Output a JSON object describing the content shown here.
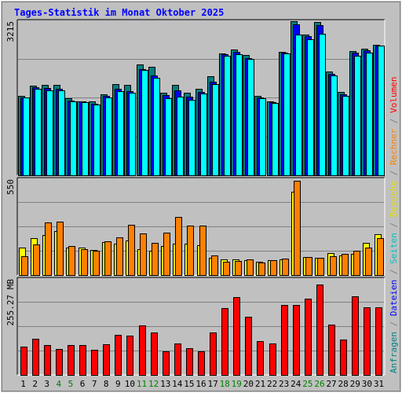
{
  "chart_data": {
    "type": "bar",
    "title": "Tages-Statistik im Monat Oktober 2025",
    "title_color": "#0000ff",
    "background": "#c0c0c0",
    "plot_background": "#c0c0c0",
    "grid": true,
    "categories": [
      "1",
      "2",
      "3",
      "4",
      "5",
      "6",
      "7",
      "8",
      "9",
      "10",
      "11",
      "12",
      "13",
      "14",
      "15",
      "16",
      "17",
      "18",
      "19",
      "20",
      "21",
      "22",
      "23",
      "24",
      "25",
      "26",
      "27",
      "28",
      "29",
      "30",
      "31"
    ],
    "weekend_days": [
      "4",
      "5",
      "11",
      "12",
      "18",
      "19",
      "25",
      "26"
    ],
    "weekday_color": "#000000",
    "weekend_color": "#008000",
    "panels": [
      {
        "id": "hits",
        "ymax_label": "3215",
        "ylim": [
          0,
          3215
        ],
        "series": [
          {
            "name": "Anfragen",
            "color": "#008080",
            "values": [
              1660,
              1870,
              1880,
              1880,
              1600,
              1550,
              1550,
              1690,
              1900,
              1890,
              2320,
              2260,
              1730,
              1880,
              1730,
              1800,
              2060,
              2550,
              2630,
              2510,
              1650,
              1540,
              2580,
              3210,
              2940,
              3200,
              2170,
              1740,
              2590,
              2640,
              2720
            ]
          },
          {
            "name": "Dateien",
            "color": "#0000ff",
            "values": [
              1630,
              1830,
              1820,
              1810,
              1560,
              1540,
              1500,
              1660,
              1800,
              1760,
              2220,
              2080,
              1680,
              1770,
              1640,
              1740,
              1960,
              2520,
              2580,
              2450,
              1620,
              1520,
              2560,
              3150,
              2900,
              3130,
              2120,
              1690,
              2560,
              2610,
              2700
            ]
          },
          {
            "name": "Seiten",
            "color": "#00ffff",
            "values": [
              1620,
              1800,
              1770,
              1770,
              1540,
              1530,
              1480,
              1630,
              1750,
              1720,
              2200,
              2030,
              1600,
              1640,
              1580,
              1700,
              1900,
              2500,
              2520,
              2430,
              1600,
              1510,
              2540,
              2940,
              2830,
              2950,
              2080,
              1660,
              2500,
              2560,
              2700
            ]
          }
        ]
      },
      {
        "id": "visits",
        "ymax_label": "550",
        "ylim": [
          0,
          550
        ],
        "series": [
          {
            "name": "Besuche",
            "color": "#ffff00",
            "values": [
              160,
              212,
              232,
              252,
              158,
              160,
              146,
              188,
              180,
              200,
              150,
              142,
              168,
              180,
              180,
              172,
              98,
              90,
              88,
              86,
              78,
              84,
              92,
              478,
              102,
              100,
              126,
              112,
              122,
              185,
              235
            ]
          },
          {
            "name": "Rechner",
            "color": "#ff8000",
            "values": [
              110,
              178,
              300,
              305,
              165,
              147,
              142,
              192,
              216,
              288,
              241,
              186,
              242,
              333,
              286,
              285,
              112,
              78,
              83,
              91,
              72,
              86,
              93,
              540,
              104,
              101,
              106,
              120,
              142,
              156,
              210
            ]
          }
        ]
      },
      {
        "id": "volume",
        "ymax_label": "255.27 MB",
        "ylim": [
          0,
          255.27
        ],
        "series": [
          {
            "name": "Volumen",
            "color": "#ff0000",
            "values": [
              76,
              97,
              79,
              70,
              79,
              80,
              66,
              82,
              107,
              104,
              132,
              113,
              63,
              83,
              72,
              63,
              113,
              178,
              208,
              154,
              90,
              83,
              187,
              187,
              203,
              240,
              134,
              95,
              210,
              180,
              180
            ]
          }
        ]
      }
    ],
    "right_labels": [
      {
        "text": "Anfragen",
        "color": "#008080"
      },
      {
        "text": " / ",
        "color": "#808080"
      },
      {
        "text": "Dateien",
        "color": "#0000ff"
      },
      {
        "text": " / ",
        "color": "#808080"
      },
      {
        "text": "Seiten",
        "color": "#00c0c0"
      },
      {
        "text": " / ",
        "color": "#808080"
      },
      {
        "text": "Besuche",
        "color": "#e0e000"
      },
      {
        "text": " / ",
        "color": "#808080"
      },
      {
        "text": "Rechner",
        "color": "#ff8000"
      },
      {
        "text": " / ",
        "color": "#808080"
      },
      {
        "text": "Volumen",
        "color": "#ff0000"
      }
    ]
  }
}
